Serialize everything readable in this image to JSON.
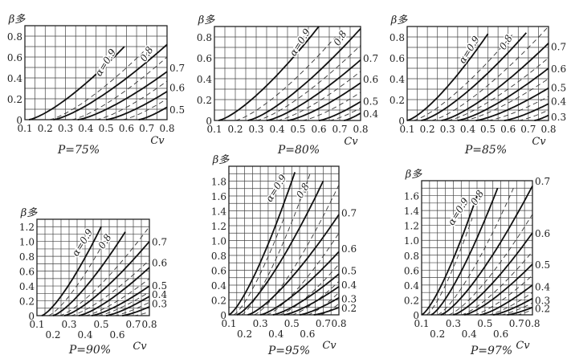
{
  "chart_data": [
    {
      "type": "line",
      "title": "P=75%",
      "ylabel": "β多",
      "xlabel": "Cv",
      "xlim": [
        0.1,
        0.8
      ],
      "ylim": [
        0,
        0.9
      ],
      "y_ticks": [
        "0",
        "0.2",
        "0.4",
        "0.6",
        "0.8"
      ],
      "x_ticks": [
        "0.1",
        "0.2",
        "0.3",
        "0.4",
        "0.5",
        "0.6",
        "0.7",
        "0.8"
      ],
      "staggered_x_ticks": false,
      "solid_curves": [
        {
          "alpha": 0.9,
          "x0": 0.12,
          "x1": 0.59,
          "y1": 0.7
        },
        {
          "alpha": 0.8,
          "x0": 0.24,
          "x1": 0.8,
          "y1": 0.72
        },
        {
          "alpha": 0.7,
          "x0": 0.36,
          "x1": 0.8,
          "y1": 0.46
        },
        {
          "alpha": 0.6,
          "x0": 0.5,
          "x1": 0.8,
          "y1": 0.27
        },
        {
          "alpha": 0.5,
          "x0": 0.66,
          "x1": 0.8,
          "y1": 0.12
        }
      ],
      "dashed_curves": [
        {
          "x0": 0.22,
          "x1": 0.72,
          "y1": 0.72
        },
        {
          "x0": 0.33,
          "x1": 0.8,
          "y1": 0.6
        },
        {
          "x0": 0.45,
          "x1": 0.8,
          "y1": 0.37
        },
        {
          "x0": 0.58,
          "x1": 0.8,
          "y1": 0.2
        }
      ],
      "curve_labels": [
        "α=0.9",
        "0.8"
      ],
      "right_labels": [
        {
          "text": "0.7",
          "y": 0.5
        },
        {
          "text": "0.6",
          "y": 0.31
        },
        {
          "text": "0.5",
          "y": 0.1
        }
      ]
    },
    {
      "type": "line",
      "title": "P=80%",
      "ylabel": "β多",
      "xlabel": "Cv",
      "xlim": [
        0.1,
        0.8
      ],
      "ylim": [
        0,
        0.9
      ],
      "y_ticks": [
        "0",
        "0.2",
        "0.4",
        "0.6",
        "0.8"
      ],
      "x_ticks": [
        "0.1",
        "0.2",
        "0.3",
        "0.4",
        "0.5",
        "0.6",
        "0.7",
        "0.8"
      ],
      "staggered_x_ticks": false,
      "solid_curves": [
        {
          "alpha": 0.9,
          "x0": 0.12,
          "x1": 0.6,
          "y1": 0.9
        },
        {
          "alpha": 0.8,
          "x0": 0.26,
          "x1": 0.8,
          "y1": 0.88
        },
        {
          "alpha": 0.7,
          "x0": 0.35,
          "x1": 0.8,
          "y1": 0.58
        },
        {
          "alpha": 0.6,
          "x0": 0.45,
          "x1": 0.8,
          "y1": 0.36
        },
        {
          "alpha": 0.5,
          "x0": 0.6,
          "x1": 0.8,
          "y1": 0.18
        },
        {
          "alpha": 0.4,
          "x0": 0.72,
          "x1": 0.8,
          "y1": 0.07
        }
      ],
      "dashed_curves": [
        {
          "x0": 0.2,
          "x1": 0.68,
          "y1": 0.8
        },
        {
          "x0": 0.3,
          "x1": 0.8,
          "y1": 0.72
        },
        {
          "x0": 0.4,
          "x1": 0.8,
          "y1": 0.47
        },
        {
          "x0": 0.52,
          "x1": 0.8,
          "y1": 0.27
        },
        {
          "x0": 0.65,
          "x1": 0.8,
          "y1": 0.12
        }
      ],
      "curve_labels": [
        "α=0.9",
        "0.8"
      ],
      "right_labels": [
        {
          "text": "0.7",
          "y": 0.6
        },
        {
          "text": "0.6",
          "y": 0.4
        },
        {
          "text": "0.5",
          "y": 0.19
        },
        {
          "text": "0.4",
          "y": 0.07
        }
      ]
    },
    {
      "type": "line",
      "title": "P=85%",
      "ylabel": "β多",
      "xlabel": "Cv",
      "xlim": [
        0.1,
        0.8
      ],
      "ylim": [
        0,
        0.9
      ],
      "y_ticks": [
        "0",
        "0.2",
        "0.4",
        "0.6",
        "0.8"
      ],
      "x_ticks": [
        "0.1",
        "0.2",
        "0.3",
        "0.4",
        "0.5",
        "0.6",
        "0.7",
        "0.8"
      ],
      "staggered_x_ticks": false,
      "solid_curves": [
        {
          "alpha": 0.9,
          "x0": 0.1,
          "x1": 0.5,
          "y1": 0.83
        },
        {
          "alpha": 0.8,
          "x0": 0.17,
          "x1": 0.69,
          "y1": 0.84
        },
        {
          "alpha": 0.7,
          "x0": 0.27,
          "x1": 0.8,
          "y1": 0.74
        },
        {
          "alpha": 0.6,
          "x0": 0.35,
          "x1": 0.8,
          "y1": 0.5
        },
        {
          "alpha": 0.5,
          "x0": 0.44,
          "x1": 0.8,
          "y1": 0.31
        },
        {
          "alpha": 0.4,
          "x0": 0.58,
          "x1": 0.8,
          "y1": 0.16
        },
        {
          "alpha": 0.3,
          "x0": 0.73,
          "x1": 0.8,
          "y1": 0.05
        }
      ],
      "dashed_curves": [
        {
          "x0": 0.13,
          "x1": 0.62,
          "y1": 0.82
        },
        {
          "x0": 0.22,
          "x1": 0.8,
          "y1": 0.9
        },
        {
          "x0": 0.3,
          "x1": 0.8,
          "y1": 0.6
        },
        {
          "x0": 0.38,
          "x1": 0.8,
          "y1": 0.4
        },
        {
          "x0": 0.5,
          "x1": 0.8,
          "y1": 0.23
        },
        {
          "x0": 0.65,
          "x1": 0.8,
          "y1": 0.1
        }
      ],
      "curve_labels": [
        "α=0.9",
        "0.8"
      ],
      "right_labels": [
        {
          "text": "0.7",
          "y": 0.71
        },
        {
          "text": "0.6",
          "y": 0.5
        },
        {
          "text": "0.5",
          "y": 0.32
        },
        {
          "text": "0.4",
          "y": 0.19
        },
        {
          "text": "0.3",
          "y": 0.04
        }
      ]
    },
    {
      "type": "line",
      "title": "P=90%",
      "ylabel": "β多",
      "xlabel": "Cv",
      "xlim": [
        0.1,
        0.8
      ],
      "ylim": [
        0,
        1.3
      ],
      "y_ticks": [
        "0",
        "0.2",
        "0.4",
        "0.6",
        "0.8",
        "1.0",
        "1.2"
      ],
      "x_ticks": [
        "0.1",
        "0.2",
        "0.3",
        "0.4",
        "0.5",
        "0.6",
        "0.7",
        "0.8"
      ],
      "staggered_x_ticks": true,
      "solid_curves": [
        {
          "alpha": 0.9,
          "x0": 0.13,
          "x1": 0.5,
          "y1": 1.2
        },
        {
          "alpha": 0.8,
          "x0": 0.2,
          "x1": 0.65,
          "y1": 1.13
        },
        {
          "alpha": 0.7,
          "x0": 0.27,
          "x1": 0.8,
          "y1": 1.0
        },
        {
          "alpha": 0.6,
          "x0": 0.36,
          "x1": 0.8,
          "y1": 0.65
        },
        {
          "alpha": 0.5,
          "x0": 0.44,
          "x1": 0.8,
          "y1": 0.4
        },
        {
          "alpha": 0.4,
          "x0": 0.53,
          "x1": 0.8,
          "y1": 0.26
        },
        {
          "alpha": 0.3,
          "x0": 0.63,
          "x1": 0.8,
          "y1": 0.12
        }
      ],
      "dashed_curves": [
        {
          "x0": 0.17,
          "x1": 0.52,
          "y1": 1.0
        },
        {
          "x0": 0.24,
          "x1": 0.8,
          "y1": 1.2
        },
        {
          "x0": 0.31,
          "x1": 0.8,
          "y1": 0.75
        },
        {
          "x0": 0.4,
          "x1": 0.8,
          "y1": 0.5
        },
        {
          "x0": 0.48,
          "x1": 0.8,
          "y1": 0.32
        },
        {
          "x0": 0.58,
          "x1": 0.8,
          "y1": 0.18
        },
        {
          "x0": 0.7,
          "x1": 0.8,
          "y1": 0.05
        }
      ],
      "curve_labels": [
        "α=0.9",
        "0.8"
      ],
      "right_labels": [
        {
          "text": "0.7",
          "y": 1.0
        },
        {
          "text": "0.6",
          "y": 0.72
        },
        {
          "text": "0.5",
          "y": 0.41
        },
        {
          "text": "0.4",
          "y": 0.29
        },
        {
          "text": "0.3",
          "y": 0.17
        }
      ]
    },
    {
      "type": "line",
      "title": "P=95%",
      "ylabel": "β多",
      "xlabel": "Cv",
      "xlim": [
        0.1,
        0.8
      ],
      "ylim": [
        0,
        2.0
      ],
      "y_ticks": [
        "0",
        "0.2",
        "0.4",
        "0.6",
        "0.8",
        "1.0",
        "1.2",
        "1.4",
        "1.6",
        "1.8"
      ],
      "x_ticks": [
        "0.1",
        "0.2",
        "0.3",
        "0.4",
        "0.5",
        "0.6",
        "0.7",
        "0.8"
      ],
      "staggered_x_ticks": true,
      "solid_curves": [
        {
          "alpha": 0.9,
          "x0": 0.1,
          "x1": 0.52,
          "y1": 1.92
        },
        {
          "alpha": 0.8,
          "x0": 0.15,
          "x1": 0.7,
          "y1": 1.8
        },
        {
          "alpha": 0.7,
          "x0": 0.22,
          "x1": 0.8,
          "y1": 1.35
        },
        {
          "alpha": 0.6,
          "x0": 0.3,
          "x1": 0.8,
          "y1": 0.85
        },
        {
          "alpha": 0.5,
          "x0": 0.38,
          "x1": 0.8,
          "y1": 0.55
        },
        {
          "alpha": 0.4,
          "x0": 0.45,
          "x1": 0.8,
          "y1": 0.38
        },
        {
          "alpha": 0.3,
          "x0": 0.55,
          "x1": 0.8,
          "y1": 0.23
        },
        {
          "alpha": 0.2,
          "x0": 0.64,
          "x1": 0.8,
          "y1": 0.1
        }
      ],
      "dashed_curves": [
        {
          "x0": 0.13,
          "x1": 0.45,
          "y1": 1.3
        },
        {
          "x0": 0.18,
          "x1": 0.62,
          "y1": 1.92
        },
        {
          "x0": 0.26,
          "x1": 0.8,
          "y1": 1.75
        },
        {
          "x0": 0.34,
          "x1": 0.8,
          "y1": 1.1
        },
        {
          "x0": 0.42,
          "x1": 0.8,
          "y1": 0.68
        },
        {
          "x0": 0.5,
          "x1": 0.8,
          "y1": 0.45
        },
        {
          "x0": 0.6,
          "x1": 0.8,
          "y1": 0.3
        },
        {
          "x0": 0.68,
          "x1": 0.8,
          "y1": 0.15
        }
      ],
      "curve_labels": [
        "α=0.9",
        "0.8"
      ],
      "right_labels": [
        {
          "text": "0.7",
          "y": 1.38
        },
        {
          "text": "0.6",
          "y": 0.9
        },
        {
          "text": "0.5",
          "y": 0.6
        },
        {
          "text": "0.4",
          "y": 0.41
        },
        {
          "text": "0.3",
          "y": 0.22
        },
        {
          "text": "0.2",
          "y": 0.1
        }
      ]
    },
    {
      "type": "line",
      "title": "P=97%",
      "ylabel": "β多",
      "xlabel": "Cv",
      "xlim": [
        0.1,
        0.8
      ],
      "ylim": [
        0,
        1.8
      ],
      "y_ticks": [
        "0",
        "0.2",
        "0.4",
        "0.6",
        "0.8",
        "1.0",
        "1.2",
        "1.4",
        "1.6"
      ],
      "x_ticks": [
        "0.1",
        "0.2",
        "0.3",
        "0.4",
        "0.5",
        "0.6",
        "0.7",
        "0.8"
      ],
      "staggered_x_ticks": true,
      "solid_curves": [
        {
          "alpha": 0.9,
          "x0": 0.1,
          "x1": 0.45,
          "y1": 1.6
        },
        {
          "alpha": 0.8,
          "x0": 0.16,
          "x1": 0.58,
          "y1": 1.7
        },
        {
          "alpha": 0.7,
          "x0": 0.22,
          "x1": 0.8,
          "y1": 1.73
        },
        {
          "alpha": 0.6,
          "x0": 0.3,
          "x1": 0.8,
          "y1": 1.1
        },
        {
          "alpha": 0.5,
          "x0": 0.37,
          "x1": 0.8,
          "y1": 0.68
        },
        {
          "alpha": 0.4,
          "x0": 0.47,
          "x1": 0.8,
          "y1": 0.4
        },
        {
          "alpha": 0.3,
          "x0": 0.55,
          "x1": 0.8,
          "y1": 0.22
        },
        {
          "alpha": 0.2,
          "x0": 0.64,
          "x1": 0.8,
          "y1": 0.1
        }
      ],
      "dashed_curves": [
        {
          "x0": 0.13,
          "x1": 0.42,
          "y1": 1.3
        },
        {
          "x0": 0.2,
          "x1": 0.68,
          "y1": 1.7
        },
        {
          "x0": 0.27,
          "x1": 0.8,
          "y1": 1.35
        },
        {
          "x0": 0.35,
          "x1": 0.8,
          "y1": 0.85
        },
        {
          "x0": 0.43,
          "x1": 0.8,
          "y1": 0.53
        },
        {
          "x0": 0.52,
          "x1": 0.8,
          "y1": 0.3
        },
        {
          "x0": 0.6,
          "x1": 0.8,
          "y1": 0.16
        },
        {
          "x0": 0.7,
          "x1": 0.8,
          "y1": 0.07
        }
      ],
      "curve_labels": [
        "α=0.9",
        "0.8"
      ],
      "right_labels": [
        {
          "text": "0.7",
          "y": 1.8
        },
        {
          "text": "0.6",
          "y": 1.1
        },
        {
          "text": "0.5",
          "y": 0.68
        },
        {
          "text": "0.4",
          "y": 0.38
        },
        {
          "text": "0.3",
          "y": 0.2
        },
        {
          "text": "0.2",
          "y": 0.09
        }
      ]
    }
  ]
}
